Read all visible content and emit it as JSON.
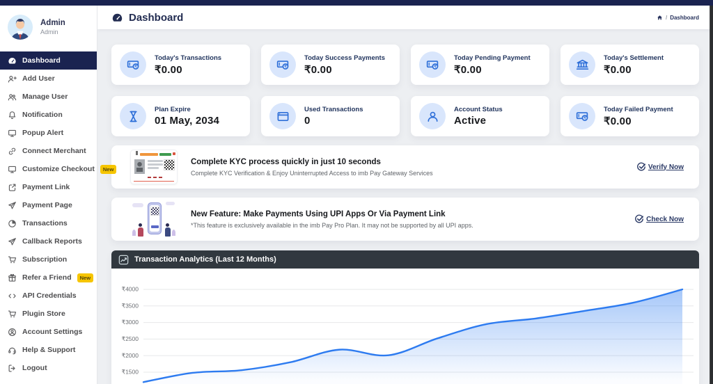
{
  "theme": {
    "navy": "#1a2350",
    "accent_blue": "#2e6fd8",
    "icon_circle_bg": "#d9e6fc",
    "badge_yellow": "#f6c500",
    "chart_header_bg": "#31383f",
    "chart_line": "#2d7bf0",
    "content_bg": "#edeff2"
  },
  "sidebar": {
    "profile": {
      "name": "Admin",
      "role": "Admin",
      "avatar_icon": "admin-avatar"
    },
    "items": [
      {
        "label": "Dashboard",
        "icon": "dashboard-icon",
        "active": true
      },
      {
        "label": "Add User",
        "icon": "add-user-icon"
      },
      {
        "label": "Manage User",
        "icon": "manage-user-icon"
      },
      {
        "label": "Notification",
        "icon": "notification-icon"
      },
      {
        "label": "Popup Alert",
        "icon": "popup-alert-icon"
      },
      {
        "label": "Connect Merchant",
        "icon": "link-icon"
      },
      {
        "label": "Customize Checkout",
        "icon": "monitor-icon",
        "badge": "New"
      },
      {
        "label": "Payment Link",
        "icon": "external-link-icon"
      },
      {
        "label": "Payment Page",
        "icon": "send-icon"
      },
      {
        "label": "Transactions",
        "icon": "pie-chart-icon"
      },
      {
        "label": "Callback Reports",
        "icon": "send-icon"
      },
      {
        "label": "Subscription",
        "icon": "cart-icon"
      },
      {
        "label": "Refer a Friend",
        "icon": "gift-icon",
        "badge": "New"
      },
      {
        "label": "API Credentials",
        "icon": "code-icon"
      },
      {
        "label": "Plugin Store",
        "icon": "cart-icon"
      },
      {
        "label": "Account Settings",
        "icon": "account-icon"
      },
      {
        "label": "Help & Support",
        "icon": "headset-icon"
      },
      {
        "label": "Logout",
        "icon": "logout-icon"
      }
    ]
  },
  "header": {
    "title": "Dashboard",
    "title_icon": "dashboard-icon",
    "breadcrumb": {
      "home_icon": "home-icon",
      "separator": "/",
      "current": "Dashboard"
    }
  },
  "stats": [
    {
      "label": "Today's Transactions",
      "value": "₹0.00",
      "icon": "cash-icon"
    },
    {
      "label": "Today Success Payments",
      "value": "₹0.00",
      "icon": "cash-icon"
    },
    {
      "label": "Today Pending Payment",
      "value": "₹0.00",
      "icon": "cash-icon"
    },
    {
      "label": "Today's Settlement",
      "value": "₹0.00",
      "icon": "bank-icon"
    },
    {
      "label": "Plan Expire",
      "value": "01 May, 2034",
      "icon": "hourglass-icon"
    },
    {
      "label": "Used Transactions",
      "value": "0",
      "icon": "browser-icon"
    },
    {
      "label": "Account Status",
      "value": "Active",
      "icon": "user-icon"
    },
    {
      "label": "Today Failed Payment",
      "value": "₹0.00",
      "icon": "cash-icon"
    }
  ],
  "banners": [
    {
      "graphic": "aadhaar-card-graphic",
      "title": "Complete KYC process quickly in just 10 seconds",
      "subtitle": "Complete KYC Verification & Enjoy Uninterrupted Access to imb Pay Gateway Services",
      "action_label": "Verify Now",
      "action_icon": "check-circle-icon"
    },
    {
      "graphic": "upi-illustration",
      "title": "New Feature: Make Payments Using UPI Apps Or Via Payment Link",
      "subtitle": "*This feature is exclusively available in the imb Pay Pro Plan. It may not be supported by all UPI apps.",
      "action_label": "Check Now",
      "action_icon": "check-circle-icon"
    }
  ],
  "chart_data": {
    "type": "area",
    "title": "Transaction Analytics (Last 12 Months)",
    "title_icon": "trend-up-icon",
    "months_count": 12,
    "values": [
      1200,
      1480,
      1560,
      1800,
      2180,
      2010,
      2520,
      2950,
      3120,
      3350,
      3600,
      4000
    ],
    "y_ticks": [
      4000,
      3500,
      3000,
      2500,
      2000,
      1500
    ],
    "y_tick_labels": [
      "₹4000",
      "₹3500",
      "₹3000",
      "₹2500",
      "₹2000",
      "₹1500"
    ],
    "ylim_visible": [
      1150,
      4250
    ],
    "x_labels_visible": false,
    "grid": "horizontal",
    "legend": false,
    "line_color": "#2d7bf0",
    "fill": "blue-gradient"
  }
}
